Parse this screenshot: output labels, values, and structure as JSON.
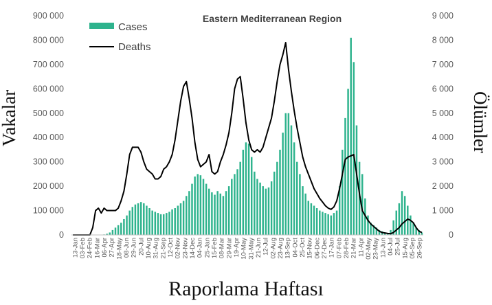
{
  "chart_data": {
    "type": "bar",
    "title": "Eastern Mediterranean Region",
    "xlabel": "Raporlama Haftası",
    "ylabel_left": "Vakalar",
    "ylabel_right": "Ölümler",
    "ylim_left": [
      0,
      900000
    ],
    "ylim_right": [
      0,
      9000
    ],
    "yticks_left": [
      "0",
      "100 000",
      "200 000",
      "300 000",
      "400 000",
      "500 000",
      "600 000",
      "700 000",
      "800 000",
      "900 000"
    ],
    "yticks_right": [
      "0",
      "1 000",
      "2 000",
      "3 000",
      "4 000",
      "5 000",
      "6 000",
      "7 000",
      "8 000",
      "9 000"
    ],
    "legend_position": "top-left",
    "colors": {
      "cases": "#2eb38d",
      "deaths": "#000000"
    },
    "tick_labels": [
      "13-Jan",
      "03-Feb",
      "24-Feb",
      "16-Mar",
      "06-Apr",
      "27-Apr",
      "18-May",
      "08-Jun",
      "29-Jun",
      "20-Jul",
      "10-Aug",
      "31-Aug",
      "21-Sep",
      "12-Oct",
      "02-Nov",
      "23-Nov",
      "14-Dec",
      "04-Jan",
      "25-Jan",
      "15-Feb",
      "08-Mar",
      "29-Mar",
      "19-Apr",
      "10-May",
      "31-May",
      "21-Jun",
      "12-Jul",
      "02-Aug",
      "23-Aug",
      "13-Sep",
      "04-Oct",
      "25-Oct",
      "15-Nov",
      "06-Dec",
      "27-Dec",
      "17-Jan",
      "07-Feb",
      "28-Feb",
      "21-Mar",
      "11-Apr",
      "02-May",
      "23-May",
      "13-Jun",
      "04-Jul",
      "25-Jul",
      "15-Aug",
      "05-Sep",
      "26-Sep"
    ],
    "series": [
      {
        "name": "Cases",
        "axis": "left",
        "type": "bar",
        "values": [
          0,
          0,
          0,
          0,
          0,
          0,
          0,
          0,
          0,
          0,
          0,
          2000,
          5000,
          10000,
          20000,
          30000,
          40000,
          50000,
          65000,
          80000,
          100000,
          115000,
          125000,
          130000,
          135000,
          130000,
          120000,
          110000,
          100000,
          95000,
          90000,
          85000,
          85000,
          90000,
          95000,
          105000,
          110000,
          120000,
          130000,
          140000,
          160000,
          180000,
          210000,
          240000,
          250000,
          245000,
          230000,
          210000,
          190000,
          175000,
          165000,
          180000,
          170000,
          160000,
          180000,
          200000,
          230000,
          250000,
          270000,
          300000,
          350000,
          380000,
          375000,
          320000,
          260000,
          230000,
          215000,
          200000,
          190000,
          195000,
          220000,
          260000,
          300000,
          350000,
          420000,
          500000,
          500000,
          450000,
          380000,
          300000,
          250000,
          200000,
          170000,
          140000,
          130000,
          120000,
          110000,
          100000,
          95000,
          90000,
          85000,
          80000,
          90000,
          100000,
          200000,
          350000,
          480000,
          600000,
          810000,
          710000,
          450000,
          300000,
          250000,
          150000,
          80000,
          50000,
          40000,
          30000,
          20000,
          15000,
          10000,
          8000,
          20000,
          60000,
          100000,
          130000,
          180000,
          160000,
          120000,
          80000,
          50000,
          30000,
          20000,
          10000
        ]
      },
      {
        "name": "Deaths",
        "axis": "right",
        "type": "line",
        "values": [
          0,
          0,
          0,
          0,
          0,
          0,
          0,
          300,
          1000,
          1100,
          900,
          1100,
          1000,
          1000,
          1000,
          1000,
          1100,
          1400,
          1800,
          2500,
          3300,
          3600,
          3600,
          3600,
          3400,
          3000,
          2700,
          2600,
          2500,
          2300,
          2300,
          2400,
          2700,
          2800,
          3000,
          3300,
          3900,
          4700,
          5500,
          6100,
          6300,
          5600,
          4800,
          3800,
          3100,
          2800,
          2900,
          3000,
          3300,
          2600,
          2500,
          2600,
          3000,
          3300,
          3700,
          4200,
          5000,
          6000,
          6400,
          6500,
          5600,
          4600,
          3900,
          3500,
          3400,
          3500,
          3400,
          3600,
          4000,
          4400,
          4800,
          5500,
          6300,
          7000,
          7400,
          7900,
          6800,
          5900,
          5100,
          4400,
          3800,
          3200,
          2800,
          2500,
          2200,
          1900,
          1700,
          1500,
          1350,
          1200,
          1100,
          1050,
          1150,
          1400,
          1900,
          2500,
          3100,
          3200,
          3250,
          3300,
          2500,
          1700,
          1000,
          800,
          600,
          450,
          350,
          250,
          150,
          100,
          80,
          60,
          50,
          100,
          200,
          300,
          450,
          550,
          650,
          600,
          500,
          300,
          150,
          100
        ]
      }
    ]
  }
}
